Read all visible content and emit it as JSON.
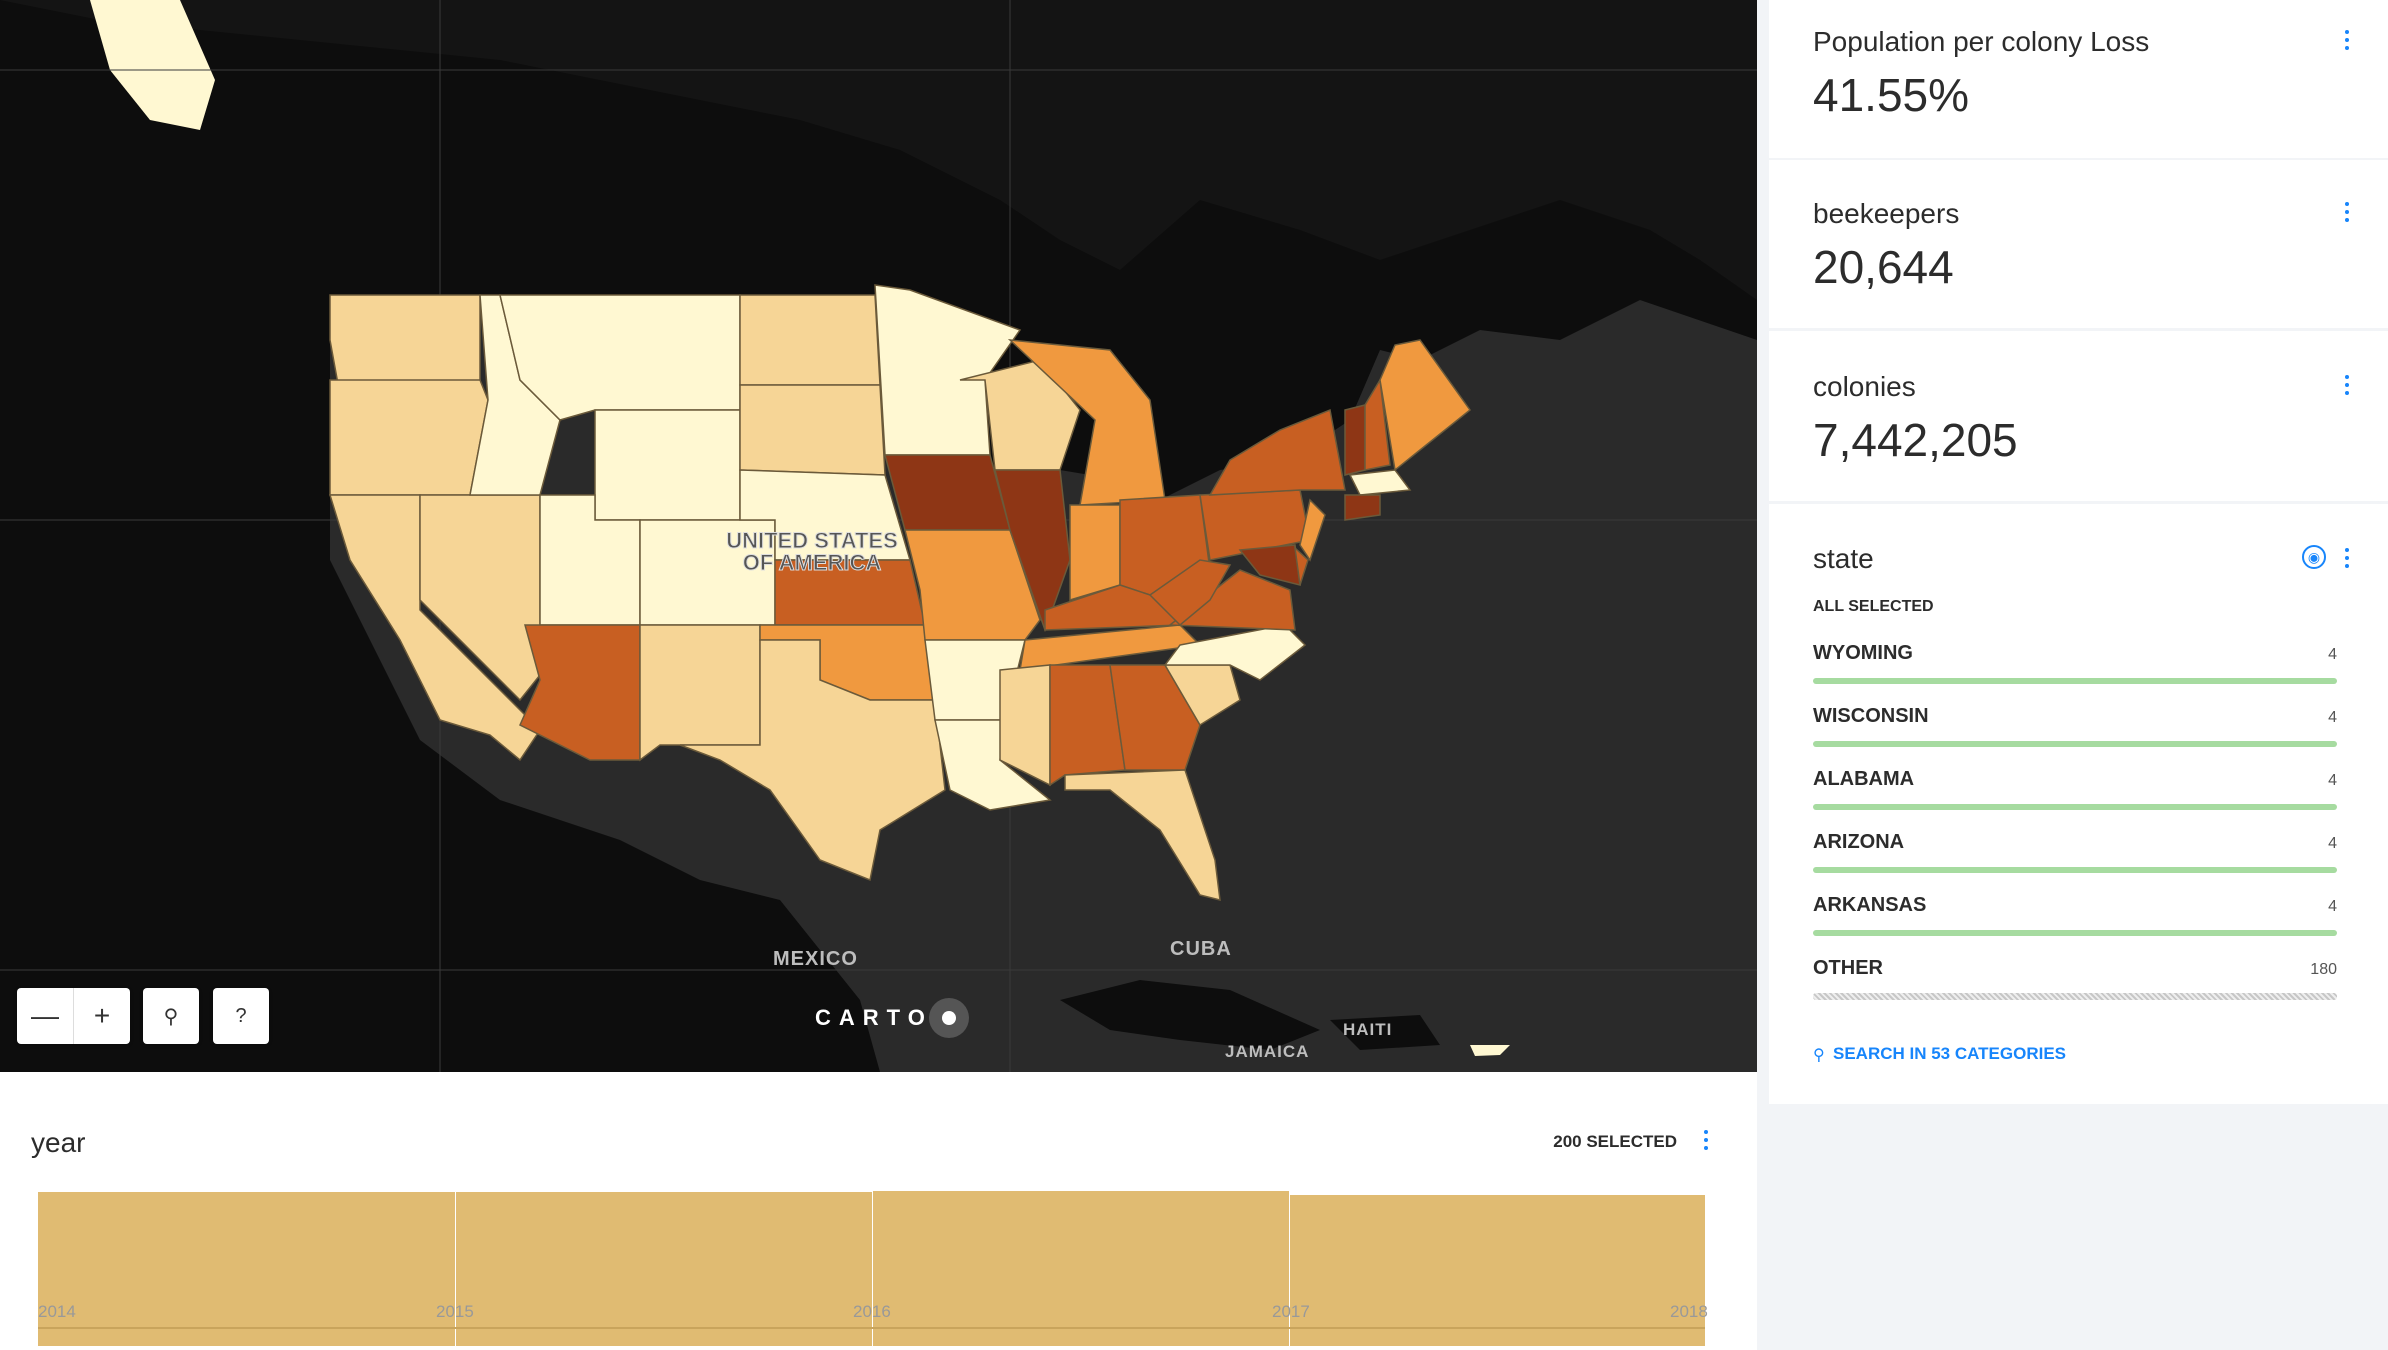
{
  "map": {
    "labels": {
      "usa_line1": "UNITED STATES",
      "usa_line2": "OF AMERICA",
      "mexico": "MEXICO",
      "cuba": "CUBA",
      "jamaica": "JAMAICA",
      "haiti": "HAITI"
    },
    "controls": {
      "zoom_out": "—",
      "zoom_in": "+",
      "search": "⚲",
      "help": "?"
    },
    "attribution": "CARTO",
    "colors": {
      "water": "#2a2a2a",
      "land": "#0d0d0d",
      "class1": "#fff8d2",
      "class2": "#f6d596",
      "class3": "#f0993f",
      "class4": "#c85f22",
      "class5": "#8e3615"
    }
  },
  "widgets": {
    "loss": {
      "title": "Population per colony Loss",
      "value": "41.55%"
    },
    "beekeepers": {
      "title": "beekeepers",
      "value": "20,644"
    },
    "colonies": {
      "title": "colonies",
      "value": "7,442,205"
    },
    "state": {
      "title": "state",
      "all_selected": "ALL SELECTED",
      "items": [
        {
          "name": "WYOMING",
          "count": "4"
        },
        {
          "name": "WISCONSIN",
          "count": "4"
        },
        {
          "name": "ALABAMA",
          "count": "4"
        },
        {
          "name": "ARIZONA",
          "count": "4"
        },
        {
          "name": "ARKANSAS",
          "count": "4"
        },
        {
          "name": "OTHER",
          "count": "180"
        }
      ],
      "search_label": "SEARCH IN 53 CATEGORIES"
    }
  },
  "timeline": {
    "title": "year",
    "selected": "200 SELECTED",
    "bar_color": "#e0bb72",
    "ticks": [
      "2014",
      "2015",
      "2016",
      "2017",
      "2018"
    ]
  }
}
